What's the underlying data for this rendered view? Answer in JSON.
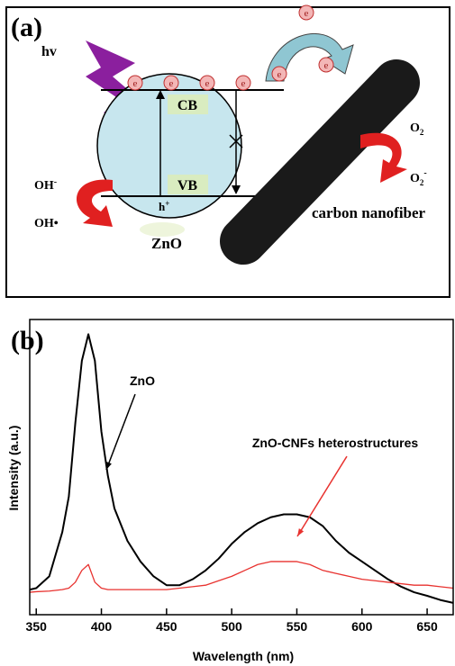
{
  "diagram": {
    "panel_label": "(a)",
    "photon": "hv",
    "cb": "CB",
    "vb": "VB",
    "hole": {
      "text": "h",
      "sup": "+"
    },
    "material": "ZnO",
    "fiber": "carbon nanofiber",
    "electrons": [
      "e",
      "e",
      "e",
      "e",
      "e",
      "e",
      "e"
    ],
    "o2": {
      "text": "O",
      "sub": "2"
    },
    "o2_radical": {
      "text": "O",
      "sub": "2",
      "sup": "-"
    },
    "oh_ion": {
      "text": "OH",
      "sup": "-"
    },
    "oh_radical": "OH•"
  },
  "chart_data": {
    "type": "line",
    "panel_label": "(b)",
    "x_label": "Wavelength (nm)",
    "y_label": "Intensity (a.u.)",
    "x": [
      345,
      350,
      360,
      370,
      375,
      380,
      385,
      390,
      395,
      400,
      405,
      410,
      420,
      430,
      440,
      450,
      460,
      470,
      480,
      490,
      500,
      510,
      520,
      530,
      540,
      550,
      560,
      570,
      580,
      590,
      600,
      610,
      620,
      630,
      640,
      650,
      660,
      670
    ],
    "series": [
      {
        "name": "ZnO",
        "color": "#000000",
        "values": [
          8.5,
          9,
          13,
          28,
          40,
          65,
          86,
          95,
          86,
          62,
          47,
          36,
          25,
          18,
          13,
          10,
          10,
          12,
          15,
          19,
          24,
          28,
          31,
          33,
          34,
          34,
          33,
          30,
          25,
          21,
          18,
          15,
          12,
          9.5,
          7.6,
          6.4,
          5,
          4
        ]
      },
      {
        "name": "ZnO-CNFs heterostructures",
        "color": "#e8322f",
        "values": [
          7.6,
          7.8,
          8,
          8.5,
          9,
          11,
          15,
          17,
          11,
          9,
          8.5,
          8.5,
          8.5,
          8.5,
          8.5,
          8.5,
          9,
          9.5,
          10,
          11.5,
          13,
          15,
          17,
          18,
          18,
          18,
          17,
          15,
          14,
          13,
          12,
          11.5,
          11,
          10.5,
          10,
          10,
          9.5,
          9
        ]
      }
    ],
    "xlim": [
      345,
      670
    ],
    "ylim": [
      0,
      100
    ],
    "xticks": [
      350,
      400,
      450,
      500,
      550,
      600,
      650
    ]
  }
}
